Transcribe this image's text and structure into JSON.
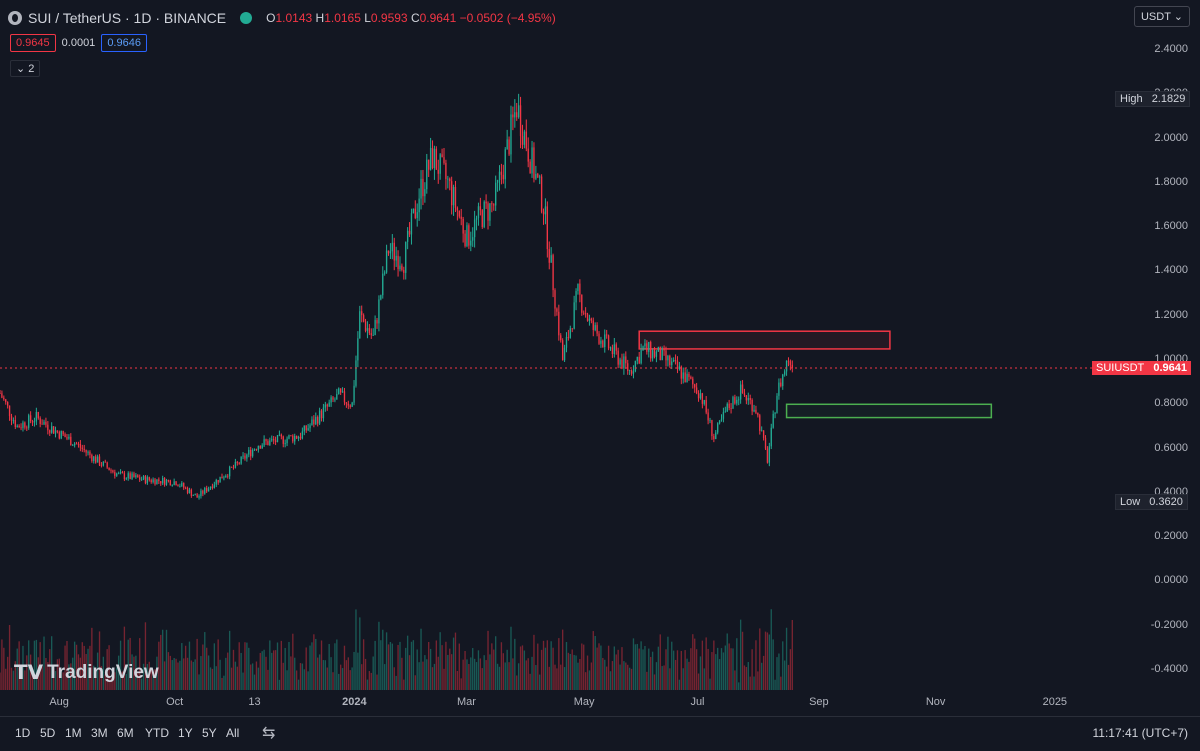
{
  "header": {
    "symbol_title": "SUI / TetherUS · 1D · BINANCE",
    "ohlc": {
      "O": "1.0143",
      "H": "1.0165",
      "L": "0.9593",
      "C": "0.9641",
      "change": "−0.0502 (−4.95%)"
    },
    "bid": "0.9645",
    "spread": "0.0001",
    "ask": "0.9646",
    "indicator_count": "2",
    "currency": "USDT"
  },
  "axis": {
    "y_ticks": [
      "2.4000",
      "2.2000",
      "2.0000",
      "1.8000",
      "1.6000",
      "1.4000",
      "1.2000",
      "1.0000",
      "0.8000",
      "0.6000",
      "0.4000",
      "0.2000",
      "0.0000",
      "-0.2000",
      "-0.4000"
    ],
    "x_ticks": [
      "Aug",
      "Oct",
      "13",
      "2024",
      "Mar",
      "May",
      "Jul",
      "Sep",
      "Nov",
      "2025"
    ]
  },
  "labels": {
    "high_label": "High",
    "high_value": "2.1829",
    "low_label": "Low",
    "low_value": "0.3620",
    "symbol_label": "SUIUSDT",
    "last_price": "0.9641"
  },
  "bottom": {
    "timeframes": [
      "1D",
      "5D",
      "1M",
      "3M",
      "6M",
      "YTD",
      "1Y",
      "5Y",
      "All"
    ],
    "clock": "11:17:41 (UTC+7)"
  },
  "branding": {
    "name": "TradingView"
  },
  "colors": {
    "up": "#22ab94",
    "down": "#f23645",
    "background": "#131722",
    "resistance_zone": "#f23645",
    "support_zone": "#4caf50"
  },
  "chart_data": {
    "type": "candlestick",
    "title": "SUI / TetherUS · 1D · BINANCE",
    "x_range": [
      "2023-07-01",
      "2025-01-31"
    ],
    "ylim": [
      -0.4,
      2.4
    ],
    "series": [
      {
        "x": "2023-07-01",
        "close": 0.85
      },
      {
        "x": "2023-07-10",
        "close": 0.7
      },
      {
        "x": "2023-07-20",
        "close": 0.74
      },
      {
        "x": "2023-07-30",
        "close": 0.68
      },
      {
        "x": "2023-08-10",
        "close": 0.62
      },
      {
        "x": "2023-08-20",
        "close": 0.55
      },
      {
        "x": "2023-09-01",
        "close": 0.48
      },
      {
        "x": "2023-09-15",
        "close": 0.46
      },
      {
        "x": "2023-10-01",
        "close": 0.45
      },
      {
        "x": "2023-10-12",
        "close": 0.38
      },
      {
        "x": "2023-10-20",
        "close": 0.44
      },
      {
        "x": "2023-11-01",
        "close": 0.52
      },
      {
        "x": "2023-11-13",
        "close": 0.62
      },
      {
        "x": "2023-11-25",
        "close": 0.64
      },
      {
        "x": "2023-12-05",
        "close": 0.66
      },
      {
        "x": "2023-12-15",
        "close": 0.75
      },
      {
        "x": "2023-12-25",
        "close": 0.84
      },
      {
        "x": "2024-01-01",
        "close": 0.8
      },
      {
        "x": "2024-01-05",
        "close": 1.2
      },
      {
        "x": "2024-01-12",
        "close": 1.1
      },
      {
        "x": "2024-01-20",
        "close": 1.5
      },
      {
        "x": "2024-01-28",
        "close": 1.45
      },
      {
        "x": "2024-02-05",
        "close": 1.75
      },
      {
        "x": "2024-02-12",
        "close": 1.92
      },
      {
        "x": "2024-02-20",
        "close": 1.8
      },
      {
        "x": "2024-03-01",
        "close": 1.55
      },
      {
        "x": "2024-03-08",
        "close": 1.65
      },
      {
        "x": "2024-03-15",
        "close": 1.7
      },
      {
        "x": "2024-03-22",
        "close": 1.95
      },
      {
        "x": "2024-03-27",
        "close": 2.15
      },
      {
        "x": "2024-04-02",
        "close": 1.95
      },
      {
        "x": "2024-04-10",
        "close": 1.7
      },
      {
        "x": "2024-04-15",
        "close": 1.35
      },
      {
        "x": "2024-04-20",
        "close": 1.0
      },
      {
        "x": "2024-04-28",
        "close": 1.3
      },
      {
        "x": "2024-05-05",
        "close": 1.15
      },
      {
        "x": "2024-05-15",
        "close": 1.05
      },
      {
        "x": "2024-05-25",
        "close": 0.95
      },
      {
        "x": "2024-06-01",
        "close": 1.05
      },
      {
        "x": "2024-06-10",
        "close": 1.02
      },
      {
        "x": "2024-06-20",
        "close": 0.95
      },
      {
        "x": "2024-07-01",
        "close": 0.85
      },
      {
        "x": "2024-07-08",
        "close": 0.65
      },
      {
        "x": "2024-07-15",
        "close": 0.78
      },
      {
        "x": "2024-07-22",
        "close": 0.86
      },
      {
        "x": "2024-07-30",
        "close": 0.78
      },
      {
        "x": "2024-08-05",
        "close": 0.55
      },
      {
        "x": "2024-08-10",
        "close": 0.85
      },
      {
        "x": "2024-08-16",
        "close": 1.01
      },
      {
        "x": "2024-08-18",
        "close": 0.9641
      }
    ],
    "zones": [
      {
        "name": "resistance",
        "color": "red",
        "x": [
          "2024-05-30",
          "2024-10-08"
        ],
        "y": [
          1.05,
          1.13
        ]
      },
      {
        "name": "support",
        "color": "green",
        "x": [
          "2024-08-15",
          "2024-11-30"
        ],
        "y": [
          0.74,
          0.8
        ]
      }
    ],
    "last_price": 0.9641,
    "high": 2.1829,
    "low": 0.362
  }
}
